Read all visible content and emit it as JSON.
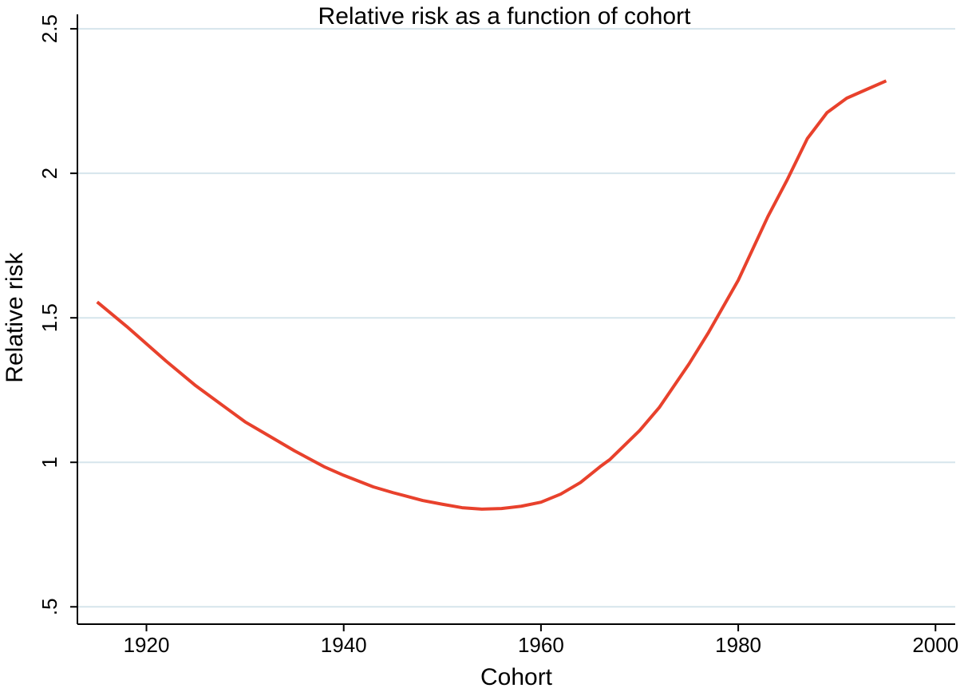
{
  "chart_data": {
    "type": "line",
    "title": "Relative risk as a function of cohort",
    "x_label": "Cohort",
    "y_label": "Relative risk",
    "x": [
      1915,
      1918,
      1920,
      1922,
      1925,
      1928,
      1930,
      1932,
      1935,
      1938,
      1940,
      1943,
      1945,
      1948,
      1950,
      1952,
      1954,
      1956,
      1958,
      1960,
      1962,
      1964,
      1966,
      1967,
      1970,
      1972,
      1975,
      1977,
      1980,
      1983,
      1985,
      1987,
      1989,
      1991,
      1993,
      1995
    ],
    "series": [
      {
        "name": "Relative risk",
        "color": "#e8412c",
        "values": [
          1.555,
          1.47,
          1.41,
          1.35,
          1.265,
          1.19,
          1.14,
          1.1,
          1.04,
          0.985,
          0.955,
          0.915,
          0.895,
          0.868,
          0.855,
          0.843,
          0.838,
          0.84,
          0.848,
          0.862,
          0.89,
          0.93,
          0.985,
          1.01,
          1.11,
          1.19,
          1.34,
          1.45,
          1.63,
          1.85,
          1.98,
          2.12,
          2.21,
          2.26,
          2.29,
          2.32
        ]
      }
    ],
    "xlim": [
      1913,
      2002
    ],
    "ylim": [
      0.44,
      2.55
    ],
    "xticks": [
      1920,
      1940,
      1960,
      1980,
      2000
    ],
    "yticks": [
      {
        "value": 0.5,
        "label": ".5"
      },
      1,
      1.5,
      2,
      2.5
    ],
    "grid": true
  }
}
